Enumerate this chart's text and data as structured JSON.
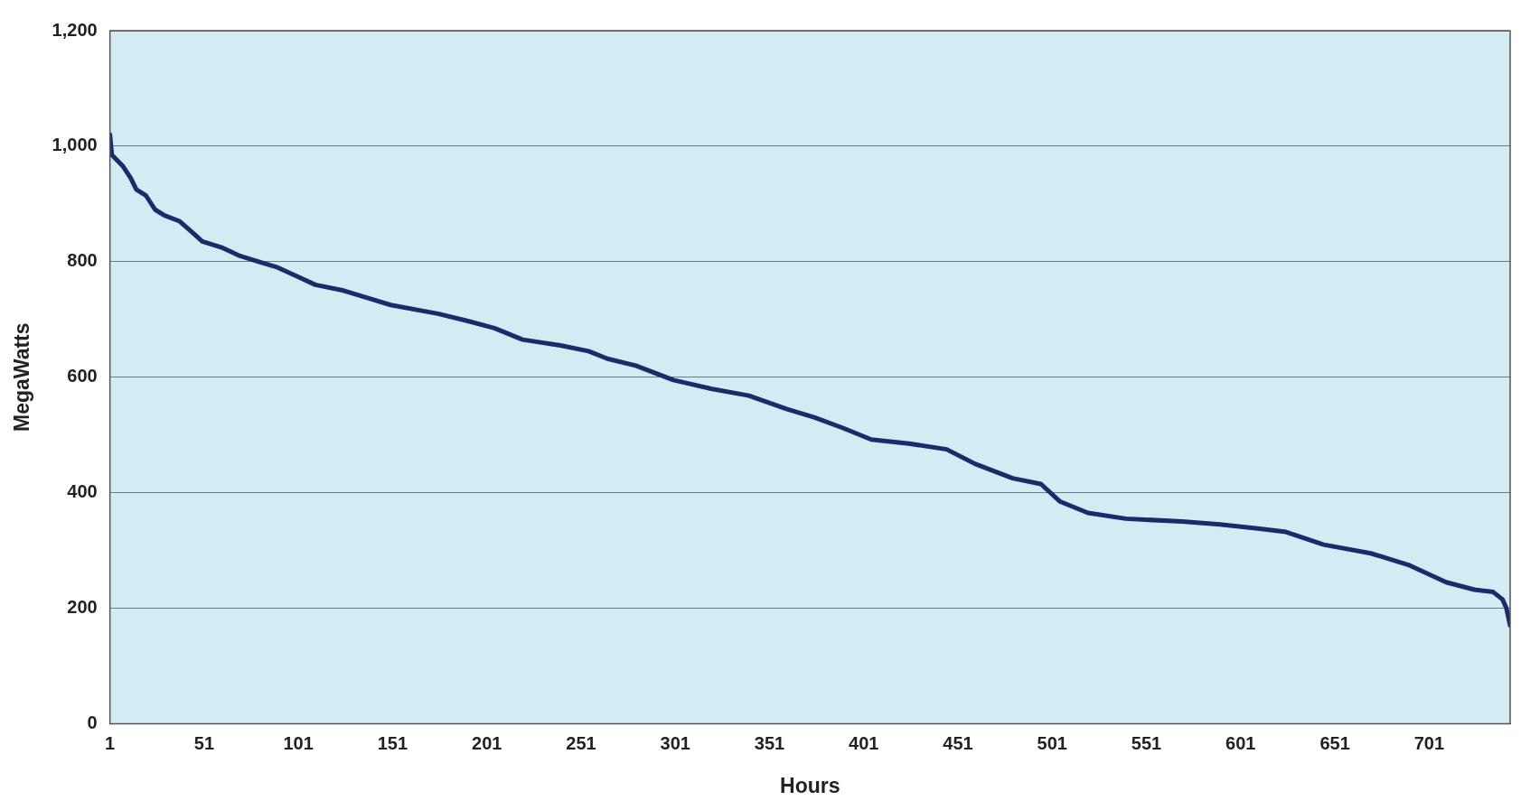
{
  "chart_data": {
    "type": "line",
    "xlabel": "Hours",
    "ylabel": "MegaWatts",
    "x": [
      1,
      2,
      8,
      12,
      15,
      20,
      25,
      30,
      38,
      45,
      50,
      60,
      70,
      80,
      90,
      100,
      110,
      125,
      140,
      150,
      175,
      190,
      205,
      220,
      240,
      255,
      265,
      280,
      300,
      320,
      340,
      360,
      375,
      390,
      405,
      425,
      445,
      460,
      480,
      495,
      505,
      520,
      540,
      570,
      590,
      610,
      625,
      645,
      670,
      690,
      710,
      725,
      735,
      740,
      742,
      744
    ],
    "series": [
      {
        "color": "#1b2a6b",
        "values": [
          1020,
          985,
          965,
          945,
          925,
          915,
          890,
          880,
          870,
          850,
          835,
          825,
          810,
          800,
          790,
          775,
          760,
          750,
          735,
          725,
          710,
          698,
          685,
          665,
          655,
          645,
          632,
          620,
          595,
          580,
          568,
          545,
          530,
          512,
          492,
          485,
          475,
          450,
          425,
          415,
          385,
          365,
          355,
          350,
          345,
          338,
          332,
          310,
          295,
          275,
          245,
          232,
          228,
          215,
          200,
          170
        ]
      }
    ],
    "xlim": [
      1,
      744
    ],
    "xticks": [
      1,
      51,
      101,
      151,
      201,
      251,
      301,
      351,
      401,
      451,
      501,
      551,
      601,
      651,
      701
    ],
    "ylim": [
      0,
      1200
    ],
    "yticks": [
      0,
      200,
      400,
      600,
      800,
      {
        "value": 1000,
        "label": "1,000"
      },
      {
        "value": 1200,
        "label": "1,200"
      }
    ],
    "grid": "y",
    "legend": false,
    "marker": "none",
    "line_style": "solid"
  }
}
